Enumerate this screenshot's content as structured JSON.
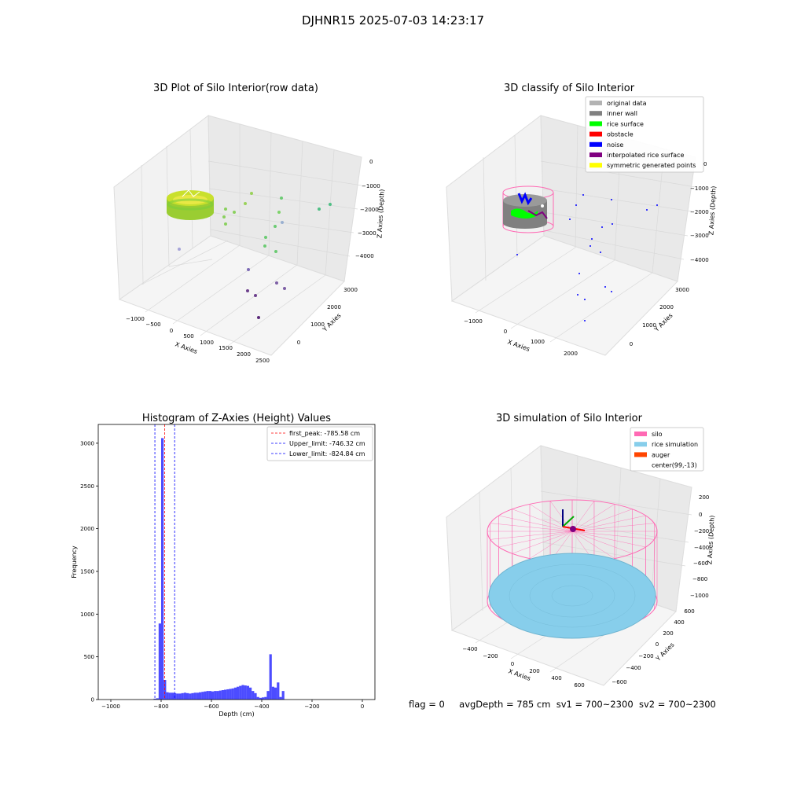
{
  "figure": {
    "title": "DJHNR15 2025-07-03 14:23:17",
    "status": {
      "flag": "flag = 0",
      "avg_depth": "avgDepth = 785 cm",
      "sv1": "sv1 = 700~2300",
      "sv2": "sv2 = 700~2300"
    }
  },
  "colors": {
    "original_data": "#b3b3b3",
    "inner_wall": "#808080",
    "rice_surface": "#00ff00",
    "obstacle": "#ff0000",
    "noise": "#0000ff",
    "interpolated_rice_surface": "#800080",
    "symmetric_generated_points": "#ffff00",
    "silo": "#ff69b4",
    "rice_simulation": "#87ceeb",
    "auger": "#ff4500",
    "hist_bar": "#0000ff",
    "first_peak_line": "#ff0000",
    "limit_line": "#0000ff"
  },
  "chart_data": [
    {
      "type": "scatter",
      "projection": "3d",
      "title": "3D Plot of Silo Interior(row data)",
      "xlabel": "X Axies",
      "ylabel": "Y Axies",
      "zlabel": "Z Axies (Depth)",
      "x_ticks": [
        "−1000",
        "−500",
        "0",
        "500",
        "1000",
        "1500",
        "2000",
        "2500"
      ],
      "y_ticks": [
        "0",
        "1000",
        "2000",
        "3000"
      ],
      "z_ticks": [
        "0",
        "−1000",
        "−2000",
        "−3000",
        "−4000"
      ],
      "colormap": "viridis"
    },
    {
      "type": "scatter",
      "projection": "3d",
      "title": "3D classify of Silo Interior",
      "xlabel": "X Axies",
      "ylabel": "Y Axies",
      "zlabel": "Z Axies (Depth)",
      "x_ticks": [
        "−1000",
        "0",
        "1000",
        "2000"
      ],
      "y_ticks": [
        "0",
        "1000",
        "2000",
        "3000"
      ],
      "z_ticks": [
        "0",
        "−1000",
        "−2000",
        "−3000",
        "−4000"
      ],
      "legend_position": "top-right",
      "legend": [
        {
          "label": "original data",
          "color": "#b3b3b3"
        },
        {
          "label": "inner wall",
          "color": "#808080"
        },
        {
          "label": "rice surface",
          "color": "#00ff00"
        },
        {
          "label": "obstacle",
          "color": "#ff0000"
        },
        {
          "label": "noise",
          "color": "#0000ff"
        },
        {
          "label": "interpolated rice surface",
          "color": "#800080"
        },
        {
          "label": "symmetric generated points",
          "color": "#ffff00"
        }
      ]
    },
    {
      "type": "bar",
      "title": "Histogram of Z-Axies (Height) Values",
      "xlabel": "Depth (cm)",
      "ylabel": "Frequency",
      "xlim": [
        -1050,
        50
      ],
      "ylim": [
        0,
        3220
      ],
      "x_ticks": [
        -1000,
        -800,
        -600,
        -400,
        -200,
        0
      ],
      "x_tick_labels": [
        "−1000",
        "−800",
        "−600",
        "−400",
        "−200",
        "0"
      ],
      "y_ticks": [
        0,
        500,
        1000,
        1500,
        2000,
        2500,
        3000
      ],
      "y_tick_labels": [
        "0",
        "500",
        "1000",
        "1500",
        "2000",
        "2500",
        "3000"
      ],
      "bin_width": 10,
      "bins": [
        {
          "x0": -830,
          "count": 10
        },
        {
          "x0": -820,
          "count": 15
        },
        {
          "x0": -810,
          "count": 890
        },
        {
          "x0": -800,
          "count": 3060
        },
        {
          "x0": -790,
          "count": 230
        },
        {
          "x0": -780,
          "count": 85
        },
        {
          "x0": -770,
          "count": 80
        },
        {
          "x0": -760,
          "count": 80
        },
        {
          "x0": -750,
          "count": 75
        },
        {
          "x0": -740,
          "count": 70
        },
        {
          "x0": -730,
          "count": 70
        },
        {
          "x0": -720,
          "count": 75
        },
        {
          "x0": -710,
          "count": 80
        },
        {
          "x0": -700,
          "count": 75
        },
        {
          "x0": -690,
          "count": 70
        },
        {
          "x0": -680,
          "count": 75
        },
        {
          "x0": -670,
          "count": 80
        },
        {
          "x0": -660,
          "count": 80
        },
        {
          "x0": -650,
          "count": 85
        },
        {
          "x0": -640,
          "count": 90
        },
        {
          "x0": -630,
          "count": 95
        },
        {
          "x0": -620,
          "count": 100
        },
        {
          "x0": -610,
          "count": 100
        },
        {
          "x0": -600,
          "count": 95
        },
        {
          "x0": -590,
          "count": 100
        },
        {
          "x0": -580,
          "count": 100
        },
        {
          "x0": -570,
          "count": 105
        },
        {
          "x0": -560,
          "count": 110
        },
        {
          "x0": -550,
          "count": 115
        },
        {
          "x0": -540,
          "count": 120
        },
        {
          "x0": -530,
          "count": 125
        },
        {
          "x0": -520,
          "count": 130
        },
        {
          "x0": -510,
          "count": 140
        },
        {
          "x0": -500,
          "count": 150
        },
        {
          "x0": -490,
          "count": 160
        },
        {
          "x0": -480,
          "count": 170
        },
        {
          "x0": -470,
          "count": 165
        },
        {
          "x0": -460,
          "count": 160
        },
        {
          "x0": -450,
          "count": 140
        },
        {
          "x0": -440,
          "count": 100
        },
        {
          "x0": -430,
          "count": 75
        },
        {
          "x0": -420,
          "count": 30
        },
        {
          "x0": -410,
          "count": 20
        },
        {
          "x0": -400,
          "count": 25
        },
        {
          "x0": -390,
          "count": 30
        },
        {
          "x0": -380,
          "count": 100
        },
        {
          "x0": -370,
          "count": 530
        },
        {
          "x0": -360,
          "count": 150
        },
        {
          "x0": -350,
          "count": 140
        },
        {
          "x0": -340,
          "count": 200
        },
        {
          "x0": -330,
          "count": 30
        },
        {
          "x0": -320,
          "count": 100
        }
      ],
      "vlines": [
        {
          "label": "first_peak: -785.58 cm",
          "x": -785.58,
          "color": "#ff0000"
        },
        {
          "label": "Upper_limit: -746.32 cm",
          "x": -746.32,
          "color": "#0000ff"
        },
        {
          "label": "Lower_limit: -824.84 cm",
          "x": -824.84,
          "color": "#0000ff"
        }
      ],
      "legend_position": "top-right"
    },
    {
      "type": "surface",
      "projection": "3d",
      "title": "3D simulation of Silo Interior",
      "xlabel": "X Axies",
      "ylabel": "Y Axies",
      "zlabel": "Z Axies (Depth)",
      "x_ticks": [
        "−400",
        "−200",
        "0",
        "200",
        "400",
        "600"
      ],
      "y_ticks": [
        "−600",
        "−400",
        "−200",
        "0",
        "200",
        "400",
        "600"
      ],
      "z_ticks": [
        "200",
        "0",
        "−200",
        "−400",
        "−600",
        "−800",
        "−1000"
      ],
      "legend_position": "top-right",
      "legend": [
        {
          "label": "silo",
          "color": "#ff69b4"
        },
        {
          "label": "rice simulation",
          "color": "#87ceeb"
        },
        {
          "label": "auger",
          "color": "#ff4500"
        },
        {
          "label": "center(99,-13)",
          "color": "#ffffff"
        }
      ]
    }
  ]
}
